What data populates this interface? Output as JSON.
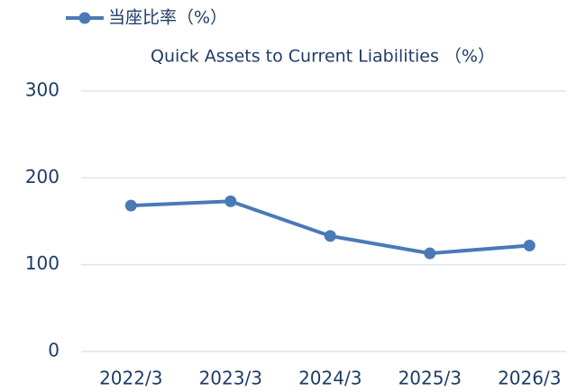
{
  "chart_data": {
    "type": "line",
    "subtitle": "Quick Assets to Current Liabilities （%）",
    "categories": [
      "2022/3",
      "2023/3",
      "2024/3",
      "2025/3",
      "2026/3"
    ],
    "series": [
      {
        "name": "当座比率（%）",
        "color": "#4a7ab5",
        "values": [
          168,
          173,
          133,
          113,
          122
        ]
      }
    ],
    "ylim": [
      0,
      300
    ],
    "yticks": [
      0,
      100,
      200,
      300
    ],
    "grid": true,
    "legend": "top-left"
  }
}
